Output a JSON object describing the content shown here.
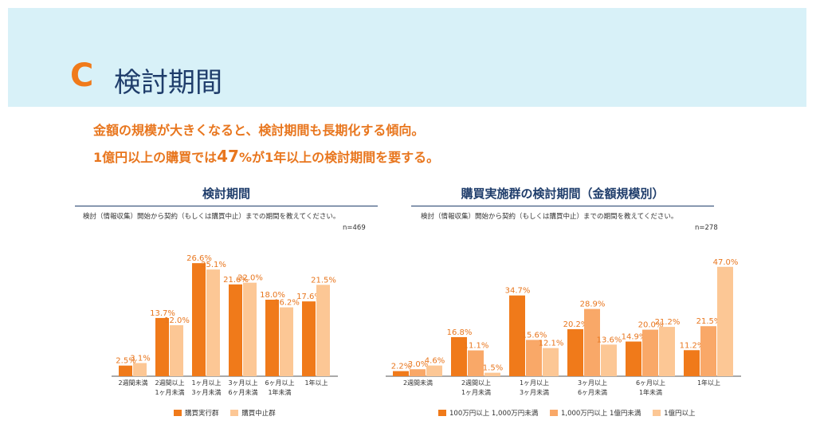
{
  "section": {
    "letter": "C",
    "title": "検討期間"
  },
  "lead": {
    "line1": "金額の規模が大きくなると、検討期間も長期化する傾向。",
    "line2_before": "1億円以上の購買では",
    "line2_emphasis": "47",
    "line2_after": "%が1年以上の検討期間を要する。"
  },
  "colors": {
    "dark": "#f07a1a",
    "mid": "#f9a868",
    "light": "#fcc795",
    "navy": "#1f3d6b",
    "label": "#e8761e"
  },
  "chart_data": [
    {
      "type": "bar",
      "title": "検討期間",
      "question": "検討（情報収集）開始から契約（もしくは購買中止）までの期間を教えてください。",
      "n": "n=469",
      "categories": [
        [
          "2週間未満"
        ],
        [
          "2週間以上",
          "1ヶ月未満"
        ],
        [
          "1ヶ月以上",
          "3ヶ月未満"
        ],
        [
          "3ヶ月以上",
          "6ヶ月未満"
        ],
        [
          "6ヶ月以上",
          "1年未満"
        ],
        [
          "1年以上"
        ]
      ],
      "series": [
        {
          "name": "購買実行群",
          "values": [
            2.5,
            13.7,
            26.6,
            21.6,
            18.0,
            17.6
          ],
          "color": "#f07a1a"
        },
        {
          "name": "購買中止群",
          "values": [
            3.1,
            12.0,
            25.1,
            22.0,
            16.2,
            21.5
          ],
          "color": "#fcc795"
        }
      ],
      "ylim": [
        0,
        30
      ]
    },
    {
      "type": "bar",
      "title": "購買実施群の検討期間（金額規模別）",
      "question": "検討（情報収集）開始から契約（もしくは購買中止）までの期間を教えてください。",
      "n": "n=278",
      "categories": [
        [
          "2週間未満"
        ],
        [
          "2週間以上",
          "1ヶ月未満"
        ],
        [
          "1ヶ月以上",
          "3ヶ月未満"
        ],
        [
          "3ヶ月以上",
          "6ヶ月未満"
        ],
        [
          "6ヶ月以上",
          "1年未満"
        ],
        [
          "1年以上"
        ]
      ],
      "series": [
        {
          "name": "100万円以上 1,000万円未満",
          "values": [
            2.2,
            16.8,
            34.7,
            20.2,
            14.9,
            11.2
          ],
          "color": "#f07a1a"
        },
        {
          "name": "1,000万円以上 1億円未満",
          "values": [
            3.0,
            11.1,
            15.6,
            28.9,
            20.0,
            21.5
          ],
          "color": "#f9a868"
        },
        {
          "name": "1億円以上",
          "values": [
            4.6,
            1.5,
            12.1,
            13.6,
            21.2,
            47.0
          ],
          "color": "#fcc795"
        }
      ],
      "ylim": [
        0,
        50
      ]
    }
  ]
}
